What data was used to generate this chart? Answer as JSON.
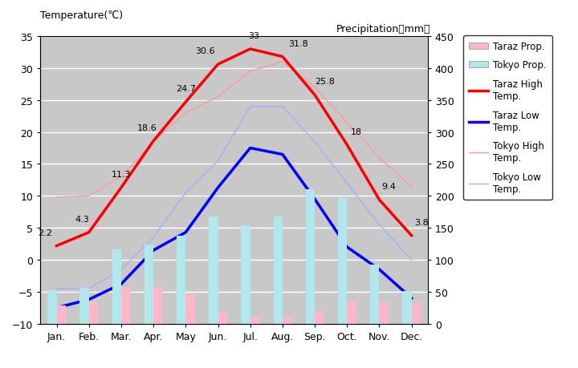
{
  "months": [
    "Jan.",
    "Feb.",
    "Mar.",
    "Apr.",
    "May",
    "Jun.",
    "Jul.",
    "Aug.",
    "Sep.",
    "Oct.",
    "Nov.",
    "Dec."
  ],
  "taraz_high": [
    2.2,
    4.3,
    11.3,
    18.6,
    24.7,
    30.6,
    33,
    31.8,
    25.8,
    18,
    9.4,
    3.8
  ],
  "taraz_low": [
    -7.5,
    -6.2,
    -3.8,
    1.5,
    4.3,
    11.3,
    17.5,
    16.5,
    9.5,
    2.0,
    -1.5,
    -6.0
  ],
  "tokyo_high": [
    9.8,
    10.0,
    13.0,
    18.5,
    23.0,
    25.5,
    29.5,
    31.0,
    27.0,
    21.5,
    16.0,
    11.5
  ],
  "tokyo_low": [
    -4.5,
    -4.5,
    -1.5,
    3.5,
    10.5,
    15.5,
    24.0,
    24.0,
    18.5,
    12.0,
    5.5,
    0.0
  ],
  "taraz_precip": [
    28,
    34,
    57,
    58,
    47,
    17,
    10,
    10,
    20,
    35,
    34,
    34
  ],
  "tokyo_precip": [
    52,
    56,
    117,
    124,
    138,
    168,
    154,
    168,
    210,
    197,
    93,
    51
  ],
  "background_color": "#c8c8c8",
  "taraz_high_color": "#ff0000",
  "taraz_low_color": "#0000ff",
  "tokyo_high_color": "#ff9999",
  "tokyo_low_color": "#aaaaff",
  "taraz_precip_color": "#ffb6c8",
  "tokyo_precip_color": "#b0e8ee",
  "temp_min": -10,
  "temp_max": 35,
  "precip_min": 0,
  "precip_max": 450,
  "title_left": "Temperature(℃)",
  "title_right": "Precipitation（mm）",
  "legend_labels": [
    "Taraz Prop.",
    "Tokyo Prop.",
    "Taraz High\nTemp.",
    "Taraz Low\nTemp.",
    "Tokyo High\nTemp.",
    "Tokyo Low\nTemp."
  ]
}
